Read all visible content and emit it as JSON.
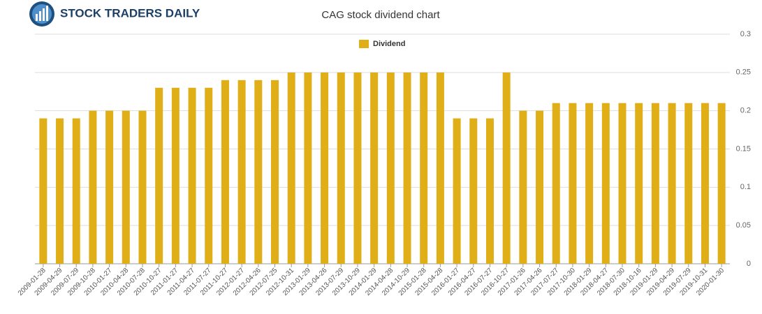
{
  "brand": "STOCK TRADERS DAILY",
  "chart_data": {
    "type": "bar",
    "title": "CAG stock dividend chart",
    "categories": [
      "2009-01-28",
      "2009-04-29",
      "2009-07-29",
      "2009-10-28",
      "2010-01-27",
      "2010-04-28",
      "2010-07-28",
      "2010-10-27",
      "2011-01-27",
      "2011-04-27",
      "2011-07-27",
      "2011-10-27",
      "2012-01-27",
      "2012-04-26",
      "2012-07-25",
      "2012-10-31",
      "2013-01-29",
      "2013-04-26",
      "2013-07-29",
      "2013-10-29",
      "2014-01-29",
      "2014-04-28",
      "2014-10-29",
      "2015-01-28",
      "2015-04-28",
      "2016-01-27",
      "2016-04-27",
      "2016-07-27",
      "2016-10-27",
      "2017-01-26",
      "2017-04-26",
      "2017-07-27",
      "2017-10-30",
      "2018-01-29",
      "2018-04-27",
      "2018-07-30",
      "2018-10-16",
      "2019-01-29",
      "2019-04-29",
      "2019-07-29",
      "2019-10-31",
      "2020-01-30"
    ],
    "series": [
      {
        "name": "Dividend",
        "color": "#e0ae16",
        "values": [
          0.19,
          0.19,
          0.19,
          0.2,
          0.2,
          0.2,
          0.2,
          0.23,
          0.23,
          0.23,
          0.23,
          0.24,
          0.24,
          0.24,
          0.24,
          0.25,
          0.25,
          0.25,
          0.25,
          0.25,
          0.25,
          0.25,
          0.25,
          0.25,
          0.25,
          0.19,
          0.19,
          0.19,
          0.25,
          0.2,
          0.2,
          0.21,
          0.21,
          0.21,
          0.21,
          0.21,
          0.21,
          0.21,
          0.21,
          0.21,
          0.21,
          0.21
        ]
      }
    ],
    "ylim": [
      0,
      0.3
    ],
    "yticks": [
      0,
      0.05,
      0.1,
      0.15,
      0.2,
      0.25,
      0.3
    ],
    "grid": true,
    "legend": "top"
  }
}
